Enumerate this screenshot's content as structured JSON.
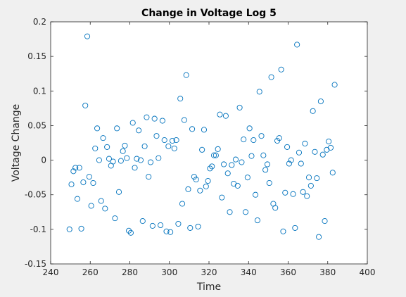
{
  "chart_data": {
    "type": "scatter",
    "title": "Change in Voltage Log 5",
    "xlabel": "Time",
    "ylabel": "Voltage Change",
    "xlim": [
      240,
      400
    ],
    "ylim": [
      -0.15,
      0.2
    ],
    "xticks": [
      "240",
      "260",
      "280",
      "300",
      "320",
      "340",
      "360",
      "380",
      "400"
    ],
    "yticks": [
      "-0.15",
      "-0.1",
      "-0.05",
      "0",
      "0.05",
      "0.1",
      "0.15",
      "0.2"
    ],
    "grid": false,
    "marker_color": "#0072BD",
    "points": [
      [
        249.5,
        -0.1
      ],
      [
        250.5,
        -0.035
      ],
      [
        251.5,
        -0.016
      ],
      [
        252.5,
        -0.011
      ],
      [
        253.5,
        -0.056
      ],
      [
        254.5,
        -0.011
      ],
      [
        255.5,
        -0.099
      ],
      [
        256.5,
        -0.032
      ],
      [
        257.5,
        0.079
      ],
      [
        258.5,
        0.179
      ],
      [
        259.5,
        -0.024
      ],
      [
        260.5,
        -0.066
      ],
      [
        261.5,
        -0.033
      ],
      [
        262.5,
        0.017
      ],
      [
        263.5,
        0.046
      ],
      [
        264.5,
        0.0
      ],
      [
        265.5,
        -0.059
      ],
      [
        266.5,
        0.032
      ],
      [
        267.5,
        -0.07
      ],
      [
        268.5,
        0.019
      ],
      [
        269.5,
        0.002
      ],
      [
        270.5,
        -0.008
      ],
      [
        271.5,
        -0.002
      ],
      [
        272.5,
        -0.084
      ],
      [
        273.5,
        0.046
      ],
      [
        274.5,
        -0.046
      ],
      [
        275.5,
        -0.001
      ],
      [
        276.5,
        0.013
      ],
      [
        277.5,
        0.021
      ],
      [
        278.5,
        0.003
      ],
      [
        279.5,
        -0.102
      ],
      [
        280.5,
        -0.105
      ],
      [
        281.5,
        0.054
      ],
      [
        282.5,
        -0.011
      ],
      [
        283.5,
        0.002
      ],
      [
        284.5,
        0.043
      ],
      [
        285.5,
        0.0
      ],
      [
        286.5,
        -0.088
      ],
      [
        287.5,
        0.02
      ],
      [
        288.5,
        0.062
      ],
      [
        289.5,
        -0.024
      ],
      [
        290.5,
        -0.003
      ],
      [
        291.5,
        -0.095
      ],
      [
        292.5,
        0.06
      ],
      [
        293.5,
        0.035
      ],
      [
        294.5,
        0.003
      ],
      [
        295.5,
        -0.094
      ],
      [
        296.5,
        0.057
      ],
      [
        297.5,
        0.029
      ],
      [
        298.5,
        -0.103
      ],
      [
        299.5,
        0.02
      ],
      [
        300.5,
        -0.104
      ],
      [
        301.5,
        0.028
      ],
      [
        302.5,
        0.017
      ],
      [
        303.5,
        0.029
      ],
      [
        304.5,
        -0.092
      ],
      [
        305.5,
        0.089
      ],
      [
        306.5,
        -0.063
      ],
      [
        307.5,
        0.058
      ],
      [
        308.5,
        0.123
      ],
      [
        309.5,
        -0.042
      ],
      [
        310.5,
        -0.098
      ],
      [
        311.5,
        0.045
      ],
      [
        312.5,
        -0.024
      ],
      [
        313.5,
        -0.028
      ],
      [
        314.5,
        -0.096
      ],
      [
        315.5,
        -0.044
      ],
      [
        316.5,
        0.015
      ],
      [
        317.5,
        0.044
      ],
      [
        318.5,
        -0.038
      ],
      [
        319.5,
        -0.03
      ],
      [
        320.5,
        -0.012
      ],
      [
        321.5,
        -0.009
      ],
      [
        322.5,
        0.007
      ],
      [
        323.5,
        0.007
      ],
      [
        324.5,
        0.016
      ],
      [
        325.5,
        0.066
      ],
      [
        326.5,
        -0.054
      ],
      [
        327.5,
        -0.006
      ],
      [
        328.5,
        0.064
      ],
      [
        329.5,
        -0.019
      ],
      [
        330.5,
        -0.075
      ],
      [
        331.5,
        -0.007
      ],
      [
        332.5,
        -0.034
      ],
      [
        333.5,
        0.001
      ],
      [
        334.5,
        -0.037
      ],
      [
        335.5,
        0.076
      ],
      [
        336.5,
        -0.003
      ],
      [
        337.5,
        0.03
      ],
      [
        338.5,
        -0.075
      ],
      [
        339.5,
        -0.025
      ],
      [
        340.5,
        0.046
      ],
      [
        341.5,
        0.006
      ],
      [
        342.5,
        0.029
      ],
      [
        343.5,
        -0.05
      ],
      [
        344.5,
        -0.087
      ],
      [
        345.5,
        0.099
      ],
      [
        346.5,
        0.035
      ],
      [
        347.5,
        0.007
      ],
      [
        348.5,
        -0.014
      ],
      [
        349.5,
        -0.006
      ],
      [
        350.5,
        -0.033
      ],
      [
        351.5,
        0.12
      ],
      [
        352.5,
        -0.063
      ],
      [
        353.5,
        -0.069
      ],
      [
        354.5,
        0.028
      ],
      [
        355.5,
        0.032
      ],
      [
        356.5,
        0.131
      ],
      [
        357.5,
        -0.103
      ],
      [
        358.5,
        -0.047
      ],
      [
        359.5,
        0.019
      ],
      [
        360.5,
        -0.005
      ],
      [
        361.5,
        0.0
      ],
      [
        362.5,
        -0.049
      ],
      [
        363.5,
        -0.098
      ],
      [
        364.5,
        0.167
      ],
      [
        365.5,
        0.011
      ],
      [
        366.5,
        -0.005
      ],
      [
        367.5,
        -0.046
      ],
      [
        368.5,
        0.024
      ],
      [
        369.5,
        -0.052
      ],
      [
        370.5,
        -0.025
      ],
      [
        371.5,
        -0.037
      ],
      [
        372.5,
        0.071
      ],
      [
        373.5,
        0.012
      ],
      [
        374.5,
        -0.026
      ],
      [
        375.5,
        -0.111
      ],
      [
        376.5,
        0.085
      ],
      [
        377.5,
        0.008
      ],
      [
        378.5,
        -0.088
      ],
      [
        379.5,
        0.015
      ],
      [
        380.5,
        0.027
      ],
      [
        381.5,
        0.018
      ],
      [
        382.5,
        -0.018
      ],
      [
        383.5,
        0.109
      ]
    ]
  }
}
